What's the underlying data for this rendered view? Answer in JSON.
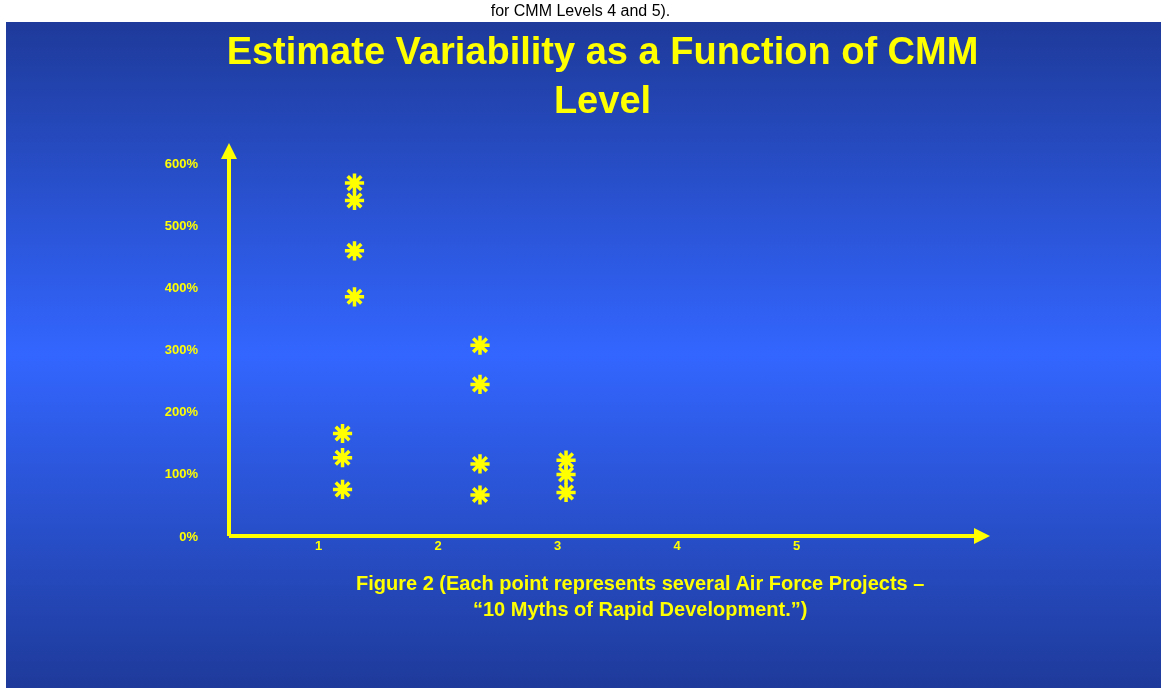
{
  "chart_data": {
    "type": "scatter",
    "title": "Estimate Variability as a Function of CMM Level",
    "annotations": [
      "for CMM Levels 4 and 5).",
      "Figure 2 (Each point represents several Air Force Projects – “10 Myths of Rapid Development.”)"
    ],
    "series": [
      {
        "color": "#ffff00",
        "x": [
          1.3,
          1.3,
          1.3,
          1.3
        ],
        "values": [
          568,
          540,
          459,
          385
        ]
      },
      {
        "color": "#ffff00",
        "x": [
          1.2,
          1.2,
          1.2
        ],
        "values": [
          165,
          126,
          75
        ]
      },
      {
        "color": "#ffff00",
        "x": [
          2.35,
          2.35,
          2.35,
          2.35
        ],
        "values": [
          307,
          244,
          116,
          66
        ]
      },
      {
        "color": "#ffff00",
        "x": [
          3.07,
          3.07,
          3.07
        ],
        "values": [
          122,
          99,
          70
        ]
      }
    ],
    "xlim": [
      0.25,
      6.5
    ],
    "xticks": [
      1,
      2,
      3,
      4,
      5
    ],
    "ylim": [
      0,
      610
    ],
    "yticks": [
      {
        "value": 0,
        "label": "0%"
      },
      {
        "value": 100,
        "label": "100%"
      },
      {
        "value": 200,
        "label": "200%"
      },
      {
        "value": 300,
        "label": "300%"
      },
      {
        "value": 400,
        "label": "400%"
      },
      {
        "value": 500,
        "label": "500%"
      },
      {
        "value": 600,
        "label": "600%"
      }
    ],
    "grid": false,
    "marker": "cross"
  }
}
